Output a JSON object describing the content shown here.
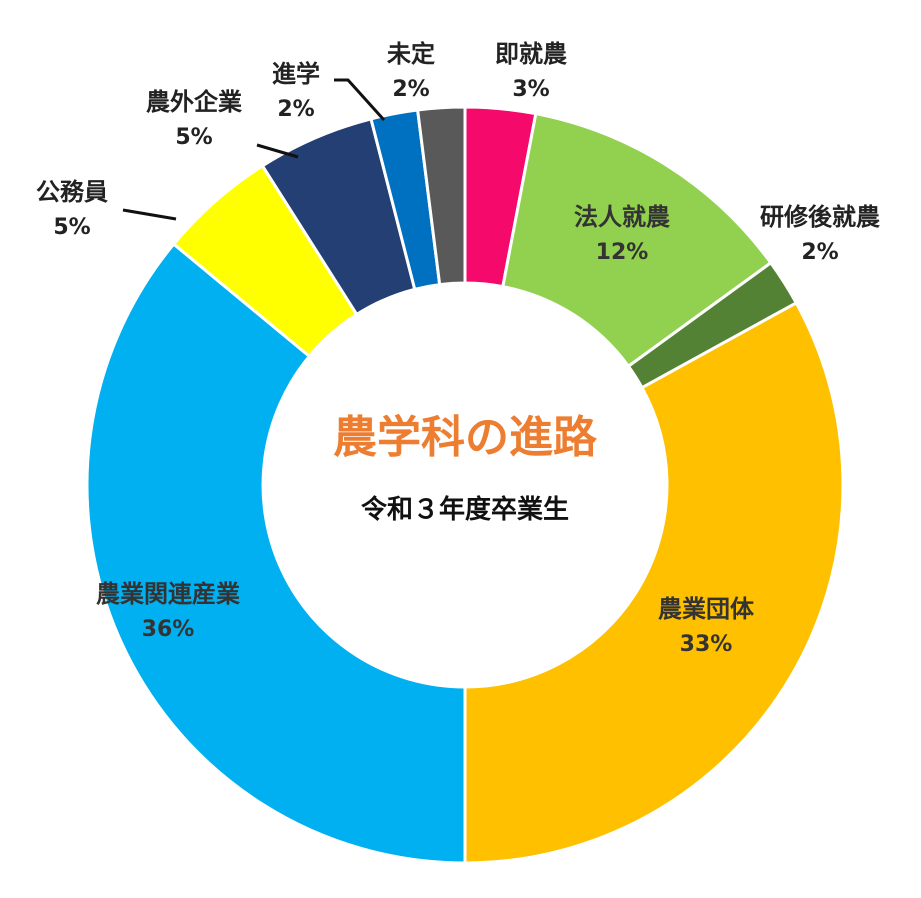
{
  "chart_data": {
    "type": "pie",
    "subtype": "donut",
    "title": "農学科の進路",
    "subtitle": "令和３年度卒業生",
    "slices": [
      {
        "label": "即就農",
        "value": 3,
        "value_label": "3%",
        "color": "#F50A6C"
      },
      {
        "label": "法人就農",
        "value": 12,
        "value_label": "12%",
        "color": "#92D050"
      },
      {
        "label": "研修後就農",
        "value": 2,
        "value_label": "2%",
        "color": "#548235"
      },
      {
        "label": "農業団体",
        "value": 33,
        "value_label": "33%",
        "color": "#FFC000"
      },
      {
        "label": "農業関連産業",
        "value": 36,
        "value_label": "36%",
        "color": "#00B0F0"
      },
      {
        "label": "公務員",
        "value": 5,
        "value_label": "5%",
        "color": "#FFFF00"
      },
      {
        "label": "農外企業",
        "value": 5,
        "value_label": "5%",
        "color": "#243F74"
      },
      {
        "label": "進学",
        "value": 2,
        "value_label": "2%",
        "color": "#0070C0"
      },
      {
        "label": "未定",
        "value": 2,
        "value_label": "2%",
        "color": "#595959"
      }
    ],
    "title_color": "#ED7D31"
  }
}
